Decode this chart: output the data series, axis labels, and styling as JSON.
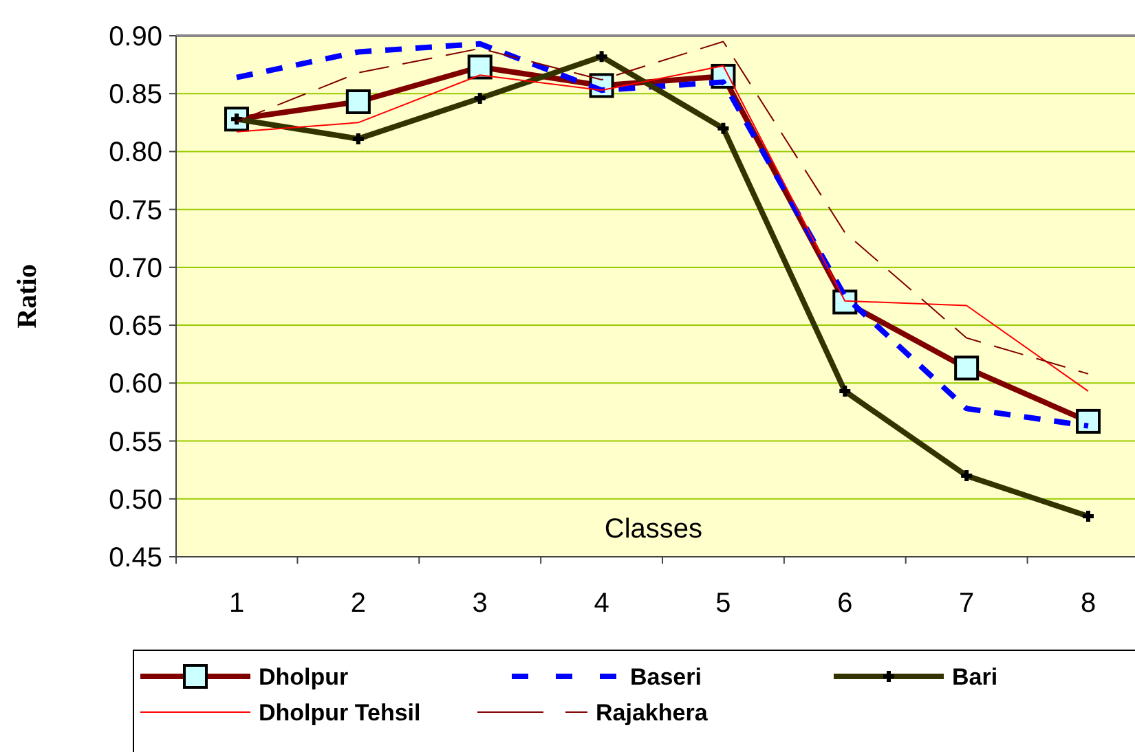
{
  "chart_data": {
    "type": "line",
    "xlabel": "Classes",
    "ylabel": "Ratio",
    "categories": [
      "1",
      "2",
      "3",
      "4",
      "5",
      "6",
      "7",
      "8"
    ],
    "ylim": [
      0.45,
      0.9
    ],
    "yticks": [
      {
        "value": 0.45,
        "label": "0.45"
      },
      {
        "value": 0.5,
        "label": "0.50"
      },
      {
        "value": 0.55,
        "label": "0.55"
      },
      {
        "value": 0.6,
        "label": "0.60"
      },
      {
        "value": 0.65,
        "label": "0.65"
      },
      {
        "value": 0.7,
        "label": "0.70"
      },
      {
        "value": 0.75,
        "label": "0.75"
      },
      {
        "value": 0.8,
        "label": "0.80"
      },
      {
        "value": 0.85,
        "label": "0.85"
      },
      {
        "value": 0.9,
        "label": "0.90"
      }
    ],
    "grid": "y",
    "legend": "bottom",
    "series": [
      {
        "name": "Dholpur",
        "color": "#800000",
        "marker": "square",
        "line_style": "solid",
        "values": [
          0.828,
          0.843,
          0.873,
          0.857,
          0.865,
          0.67,
          0.613,
          0.567
        ]
      },
      {
        "name": "Baseri",
        "color": "#0000ff",
        "marker": "none",
        "line_style": "dashed",
        "values": [
          0.864,
          0.886,
          0.893,
          0.853,
          0.86,
          0.675,
          0.578,
          0.563
        ]
      },
      {
        "name": "Bari",
        "color": "#333300",
        "marker": "cross",
        "line_style": "solid",
        "values": [
          0.828,
          0.811,
          0.846,
          0.882,
          0.82,
          0.593,
          0.52,
          0.485
        ]
      },
      {
        "name": "Dholpur Tehsil",
        "color": "#ff0000",
        "marker": "none",
        "line_style": "solid",
        "values": [
          0.817,
          0.825,
          0.866,
          0.853,
          0.874,
          0.671,
          0.667,
          0.593
        ]
      },
      {
        "name": "Rajakhera",
        "color": "#800000",
        "marker": "none",
        "line_style": "dashed",
        "values": [
          0.826,
          0.868,
          0.889,
          0.862,
          0.895,
          0.73,
          0.639,
          0.608
        ]
      }
    ]
  }
}
